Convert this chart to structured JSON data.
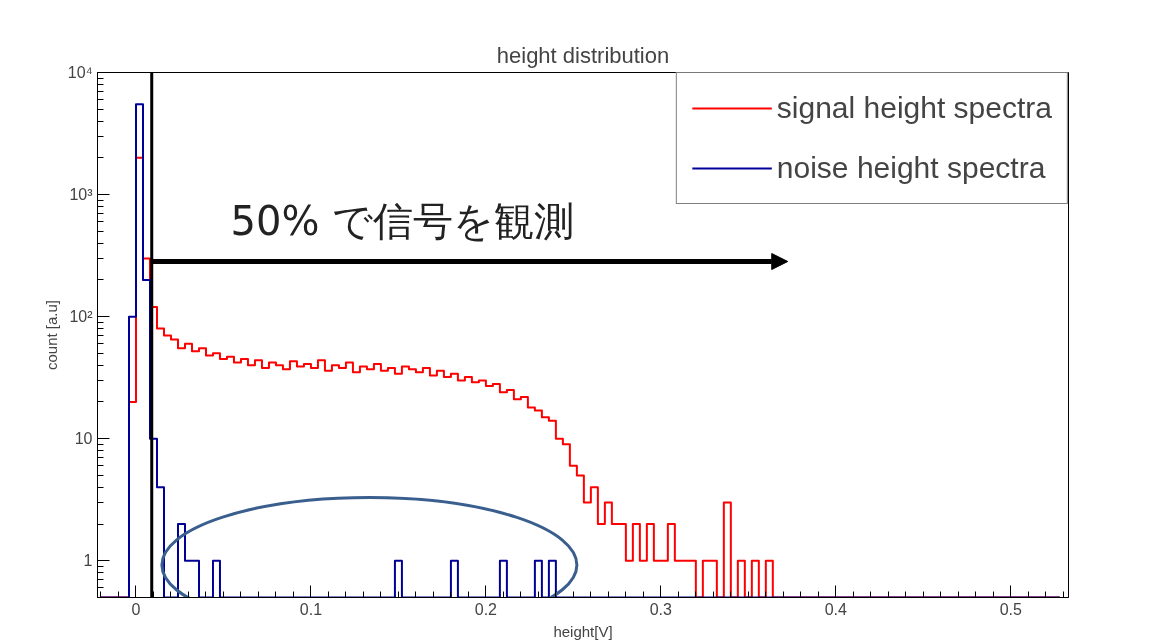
{
  "chart_data": {
    "type": "histogram",
    "title": "height distribution",
    "xlabel": "height[V]",
    "ylabel": "count [a.u]",
    "bins": [
      -0.02,
      -0.016,
      -0.012,
      -0.008,
      -0.004,
      0,
      0.004,
      0.008,
      0.012,
      0.016,
      0.02,
      0.024,
      0.028,
      0.032,
      0.036,
      0.04,
      0.044,
      0.048,
      0.052,
      0.056,
      0.06,
      0.064,
      0.068,
      0.072,
      0.076,
      0.08,
      0.084,
      0.088,
      0.092,
      0.096,
      0.1,
      0.104,
      0.108,
      0.112,
      0.116,
      0.12,
      0.124,
      0.128,
      0.132,
      0.136,
      0.14,
      0.144,
      0.148,
      0.152,
      0.156,
      0.16,
      0.164,
      0.168,
      0.172,
      0.176,
      0.18,
      0.184,
      0.188,
      0.192,
      0.196,
      0.2,
      0.204,
      0.208,
      0.212,
      0.216,
      0.22,
      0.224,
      0.228,
      0.232,
      0.236,
      0.24,
      0.244,
      0.248,
      0.252,
      0.256,
      0.26,
      0.264,
      0.268,
      0.272,
      0.276,
      0.28,
      0.284,
      0.288,
      0.292,
      0.296,
      0.3,
      0.304,
      0.308,
      0.312,
      0.316,
      0.32,
      0.324,
      0.328,
      0.332,
      0.336,
      0.34,
      0.344,
      0.348,
      0.352,
      0.356,
      0.36,
      0.364,
      0.368,
      0.372,
      0.376,
      0.38,
      0.384,
      0.388,
      0.392,
      0.396,
      0.4,
      0.404,
      0.408,
      0.412,
      0.416,
      0.42,
      0.424,
      0.428,
      0.432,
      0.436,
      0.44,
      0.444,
      0.448,
      0.452,
      0.456,
      0.46,
      0.464,
      0.468,
      0.472,
      0.476,
      0.48,
      0.484,
      0.488,
      0.492,
      0.496,
      0.5,
      0.504,
      0.508,
      0.512,
      0.516,
      0.52,
      0.524,
      0.528
    ],
    "series": [
      {
        "name": "signal height spectra",
        "color": "#ff0000",
        "values": [
          null,
          null,
          null,
          null,
          20,
          2000,
          300,
          120,
          80,
          70,
          65,
          55,
          60,
          52,
          55,
          48,
          50,
          45,
          47,
          42,
          45,
          40,
          44,
          38,
          42,
          40,
          37,
          43,
          39,
          41,
          38,
          44,
          36,
          40,
          38,
          42,
          35,
          39,
          37,
          41,
          36,
          38,
          34,
          39,
          37,
          35,
          38,
          33,
          36,
          32,
          34,
          30,
          32,
          29,
          30,
          27,
          28,
          24,
          25,
          21,
          22,
          18,
          17,
          15,
          14,
          10,
          9,
          6,
          5,
          3,
          4,
          2,
          3,
          2,
          2,
          1,
          2,
          1,
          2,
          1,
          1,
          2,
          1,
          1,
          1,
          null,
          1,
          1,
          null,
          3,
          null,
          1,
          null,
          1,
          null,
          1,
          null,
          null,
          null,
          null,
          null,
          null,
          null,
          null,
          null,
          null,
          null,
          null,
          null,
          null,
          null,
          null,
          null,
          null,
          null,
          null,
          null,
          null,
          null,
          null,
          null,
          null,
          null,
          null,
          null,
          null,
          null,
          null,
          null,
          null,
          null,
          null,
          null,
          null,
          null,
          null,
          null
        ]
      },
      {
        "name": "noise height spectra",
        "color": "#000099",
        "values": [
          null,
          null,
          null,
          null,
          100,
          5500,
          200,
          10,
          4,
          null,
          null,
          2,
          1,
          1,
          null,
          null,
          1,
          null,
          null,
          null,
          null,
          null,
          null,
          null,
          null,
          null,
          null,
          null,
          null,
          null,
          null,
          null,
          null,
          null,
          null,
          null,
          null,
          null,
          null,
          null,
          null,
          null,
          1,
          null,
          null,
          null,
          null,
          null,
          null,
          null,
          1,
          null,
          null,
          null,
          null,
          null,
          null,
          1,
          null,
          null,
          null,
          null,
          1,
          null,
          1,
          null,
          null,
          null,
          null,
          null,
          null,
          null,
          null,
          null,
          null,
          null,
          null,
          null,
          null,
          null,
          null,
          null,
          null,
          null,
          null,
          null,
          null,
          null,
          null,
          null,
          null,
          null,
          null,
          null,
          null,
          null,
          null,
          null,
          null,
          null,
          null,
          null,
          null,
          null,
          null,
          null,
          null,
          null,
          null,
          null,
          null,
          null,
          null,
          null,
          null,
          null,
          null,
          null,
          null,
          null,
          null,
          null,
          null,
          null,
          null,
          null,
          null,
          null,
          null,
          null,
          null,
          null,
          null,
          null,
          null,
          null,
          null
        ]
      }
    ],
    "log": "y",
    "xlim": [
      -0.022,
      0.533
    ],
    "ylim": [
      0.5,
      10000
    ],
    "xticks": [
      0,
      0.1,
      0.2,
      0.3,
      0.4,
      0.5
    ],
    "yticks": [
      1,
      10,
      {
        "value": 100,
        "label": "10²"
      },
      {
        "value": 1000,
        "label": "10³"
      },
      {
        "value": 10000,
        "label": "10⁴"
      }
    ],
    "ref_lines": [
      {
        "axis": "x",
        "value": 0.009,
        "color": "#000000"
      }
    ],
    "annotations": [
      "50% で信号を観測"
    ],
    "legend": "top right",
    "grid": false
  }
}
